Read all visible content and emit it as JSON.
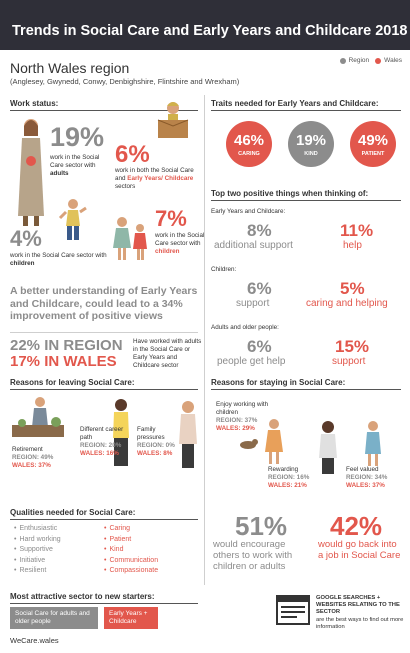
{
  "header": {
    "title": "Trends in Social Care and Early Years and Childcare 2018"
  },
  "legend": {
    "region": "Region",
    "wales": "Wales"
  },
  "colors": {
    "region": "#8c8c8c",
    "wales": "#e2574c",
    "header_bg": "#2f2f38"
  },
  "region": {
    "title": "North Wales region",
    "subtitle": "(Anglesey, Gwynedd, Conwy, Denbighshire, Flintshire and Wrexham)"
  },
  "work_status": {
    "heading": "Work status:",
    "adults_pct": "19%",
    "adults_text": "work in the Social Care sector with",
    "adults_bold": "adults",
    "both_pct": "6%",
    "both_text": "work in both the Social Care and",
    "both_red": "Early Years/ Childcare",
    "both_tail": "sectors",
    "children_pct": "4%",
    "children_text": "work in the Social Care sector with",
    "children_bold": "children",
    "childcare_pct": "7%",
    "childcare_text": "work in the Social Care sector with",
    "childcare_red": "children"
  },
  "understanding": {
    "text": "A better understanding of Early Years and Childcare, could lead to a 34% improvement of positive views"
  },
  "worked_with": {
    "region": "22% IN REGION",
    "wales": "17% IN WALES",
    "text": "Have worked with adults in the Social Care or Early Years and Childcare sector"
  },
  "traits": {
    "heading": "Traits needed for Early Years and Childcare:",
    "items": [
      {
        "pct": "46%",
        "label": "CARING",
        "color": "#e2574c"
      },
      {
        "pct": "19%",
        "label": "KIND",
        "color": "#8c8c8c"
      },
      {
        "pct": "49%",
        "label": "PATIENT",
        "color": "#e2574c"
      }
    ]
  },
  "positives": {
    "heading": "Top two positive things when thinking of:",
    "groups": [
      {
        "label": "Early Years and Childcare:",
        "a_pct": "8%",
        "a_text": "additional support",
        "b_pct": "11%",
        "b_text": "help"
      },
      {
        "label": "Children:",
        "a_pct": "6%",
        "a_text": "support",
        "b_pct": "5%",
        "b_text": "caring and helping"
      },
      {
        "label": "Adults and older people:",
        "a_pct": "6%",
        "a_text": "people get help",
        "b_pct": "15%",
        "b_text": "support"
      }
    ]
  },
  "leaving": {
    "heading": "Reasons for leaving Social Care:",
    "items": [
      {
        "name": "Retirement",
        "region": "REGION: 49%",
        "wales": "WALES: 37%"
      },
      {
        "name": "Different career path",
        "region": "REGION: 20%",
        "wales": "WALES: 16%"
      },
      {
        "name": "Family pressures",
        "region": "REGION: 0%",
        "wales": "WALES: 8%"
      }
    ]
  },
  "staying": {
    "heading": "Reasons for staying in Social Care:",
    "items": [
      {
        "name": "Enjoy working with children",
        "region": "REGION: 37%",
        "wales": "WALES: 29%"
      },
      {
        "name": "Rewarding",
        "region": "REGION: 16%",
        "wales": "WALES: 21%"
      },
      {
        "name": "Feel valued",
        "region": "REGION: 34%",
        "wales": "WALES: 37%"
      }
    ]
  },
  "qualities": {
    "heading": "Qualities needed for Social Care:",
    "grey": [
      "Enthusiastic",
      "Hard working",
      "Supportive",
      "Initiative",
      "Resilient"
    ],
    "red": [
      "Caring",
      "Patient",
      "Kind",
      "Communication",
      "Compassionate"
    ]
  },
  "encourage": {
    "pct": "51%",
    "text": "would encourage others to work with children or adults"
  },
  "back": {
    "pct": "42%",
    "text": "would go back into a job in Social Care"
  },
  "attractive": {
    "heading": "Most attractive sector to new starters:",
    "option_a": "Social Care for adults and older people",
    "option_b": "Early Years + Childcare"
  },
  "google": {
    "title": "GOOGLE SEARCHES + WEBSITES RELATING TO THE SECTOR",
    "text": "are the best ways to find out more information"
  },
  "footer": {
    "site": "WeCare.wales"
  }
}
